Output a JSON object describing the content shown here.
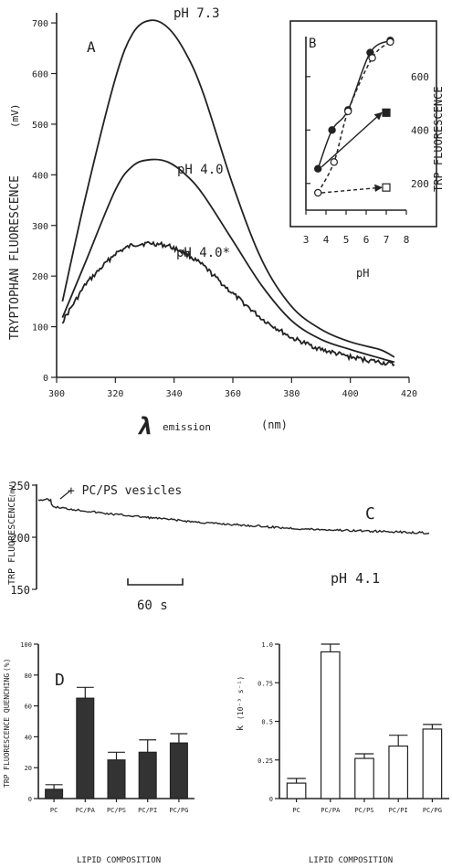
{
  "chart_data": [
    {
      "panel": "A",
      "type": "line",
      "panel_label": "A",
      "xlabel": "emission",
      "xlabel_symbol": "λ",
      "xunit": "(nm)",
      "ylabel": "TRYPTOPHAN FLUORESCENCE",
      "yunit": "(mV)",
      "xlim": [
        300,
        420
      ],
      "ylim": [
        0,
        720
      ],
      "xticks": [
        "300",
        "320",
        "340",
        "360",
        "380",
        "400",
        "420"
      ],
      "yticks": [
        "0",
        "100",
        "200",
        "300",
        "400",
        "500",
        "600",
        "700"
      ],
      "series": [
        {
          "name": "pH 7.3",
          "x": [
            302,
            310,
            320,
            326,
            332,
            338,
            344,
            350,
            360,
            370,
            380,
            390,
            400,
            410,
            415
          ],
          "y": [
            150,
            360,
            590,
            680,
            705,
            690,
            640,
            560,
            380,
            230,
            140,
            95,
            70,
            55,
            40
          ]
        },
        {
          "name": "pH 4.0",
          "x": [
            302,
            310,
            320,
            326,
            332,
            338,
            344,
            350,
            360,
            370,
            380,
            390,
            400,
            410,
            415
          ],
          "y": [
            118,
            230,
            370,
            418,
            430,
            425,
            400,
            360,
            270,
            180,
            112,
            75,
            55,
            38,
            30
          ]
        },
        {
          "name": "pH 4.0*",
          "x": [
            302,
            310,
            320,
            326,
            332,
            338,
            344,
            350,
            360,
            370,
            380,
            390,
            400,
            410,
            415
          ],
          "y": [
            110,
            185,
            245,
            262,
            265,
            260,
            245,
            220,
            165,
            115,
            78,
            55,
            40,
            30,
            25
          ]
        }
      ]
    },
    {
      "panel": "B",
      "type": "line",
      "panel_label": "B",
      "xlabel": "pH",
      "ylabel": "TRP FLUORESCENCE",
      "xlim": [
        3,
        8
      ],
      "ylim": [
        100,
        750
      ],
      "xticks": [
        "3",
        "4",
        "5",
        "6",
        "7",
        "8"
      ],
      "yticks": [
        "200",
        "400",
        "600"
      ],
      "series": [
        {
          "marker": "filled-circle",
          "style": "solid",
          "x": [
            3.6,
            4.3,
            5.1,
            6.2,
            7.2
          ],
          "y": [
            255,
            400,
            475,
            690,
            735
          ]
        },
        {
          "marker": "open-circle",
          "style": "dashed",
          "x": [
            3.6,
            4.4,
            5.1,
            6.3,
            7.2
          ],
          "y": [
            165,
            280,
            470,
            670,
            730
          ]
        },
        {
          "marker": "filled-square",
          "style": "solid-arrow",
          "x": [
            3.6,
            7.0
          ],
          "y": [
            255,
            465
          ]
        },
        {
          "marker": "open-square",
          "style": "dashed-arrow",
          "x": [
            3.6,
            7.0
          ],
          "y": [
            165,
            185
          ]
        }
      ]
    },
    {
      "panel": "C",
      "type": "line",
      "panel_label": "C",
      "ylabel": "TRP FLUORESCENCE",
      "yunit": "(mV)",
      "ylim": [
        150,
        260
      ],
      "yticks": [
        "150",
        "200",
        "250"
      ],
      "annotation": "+ PC/PS vesicles",
      "condition": "pH 4.1",
      "scalebar": "60 s",
      "series": [
        {
          "x_s": [
            0,
            15,
            16,
            20,
            40,
            60,
            80,
            120,
            160,
            200,
            240,
            280,
            320,
            360,
            400,
            440,
            475
          ],
          "y": [
            236,
            236,
            231,
            229,
            227,
            225,
            223,
            220,
            217,
            214,
            212,
            210,
            208,
            207,
            206,
            205,
            204
          ]
        }
      ]
    },
    {
      "panel": "D",
      "type": "bar",
      "panel_label": "D",
      "xlabel": "LIPID COMPOSITION",
      "ylabel": "TRP FLUORESCENCE QUENCHING",
      "yunit": "(%)",
      "ylim": [
        0,
        100
      ],
      "yticks": [
        "0",
        "20",
        "40",
        "60",
        "80",
        "100"
      ],
      "categories": [
        "PC",
        "PC/PA",
        "PC/PS",
        "PC/PI",
        "PC/PG"
      ],
      "values": [
        6,
        65,
        25,
        30,
        36
      ],
      "errors": [
        3,
        7,
        5,
        8,
        6
      ],
      "fill": "filled"
    },
    {
      "panel": "D-right",
      "type": "bar",
      "xlabel": "LIPID COMPOSITION",
      "ylabel": "k",
      "yunit": "(10⁻³ s⁻¹)",
      "ylim": [
        0,
        1.0
      ],
      "yticks": [
        "0",
        "0.25",
        "0.5",
        "0.75",
        "1.0"
      ],
      "categories": [
        "PC",
        "PC/PA",
        "PC/PS",
        "PC/PI",
        "PC/PG"
      ],
      "values": [
        0.1,
        0.95,
        0.26,
        0.34,
        0.45
      ],
      "errors": [
        0.03,
        0.05,
        0.03,
        0.07,
        0.03
      ],
      "fill": "open"
    }
  ]
}
